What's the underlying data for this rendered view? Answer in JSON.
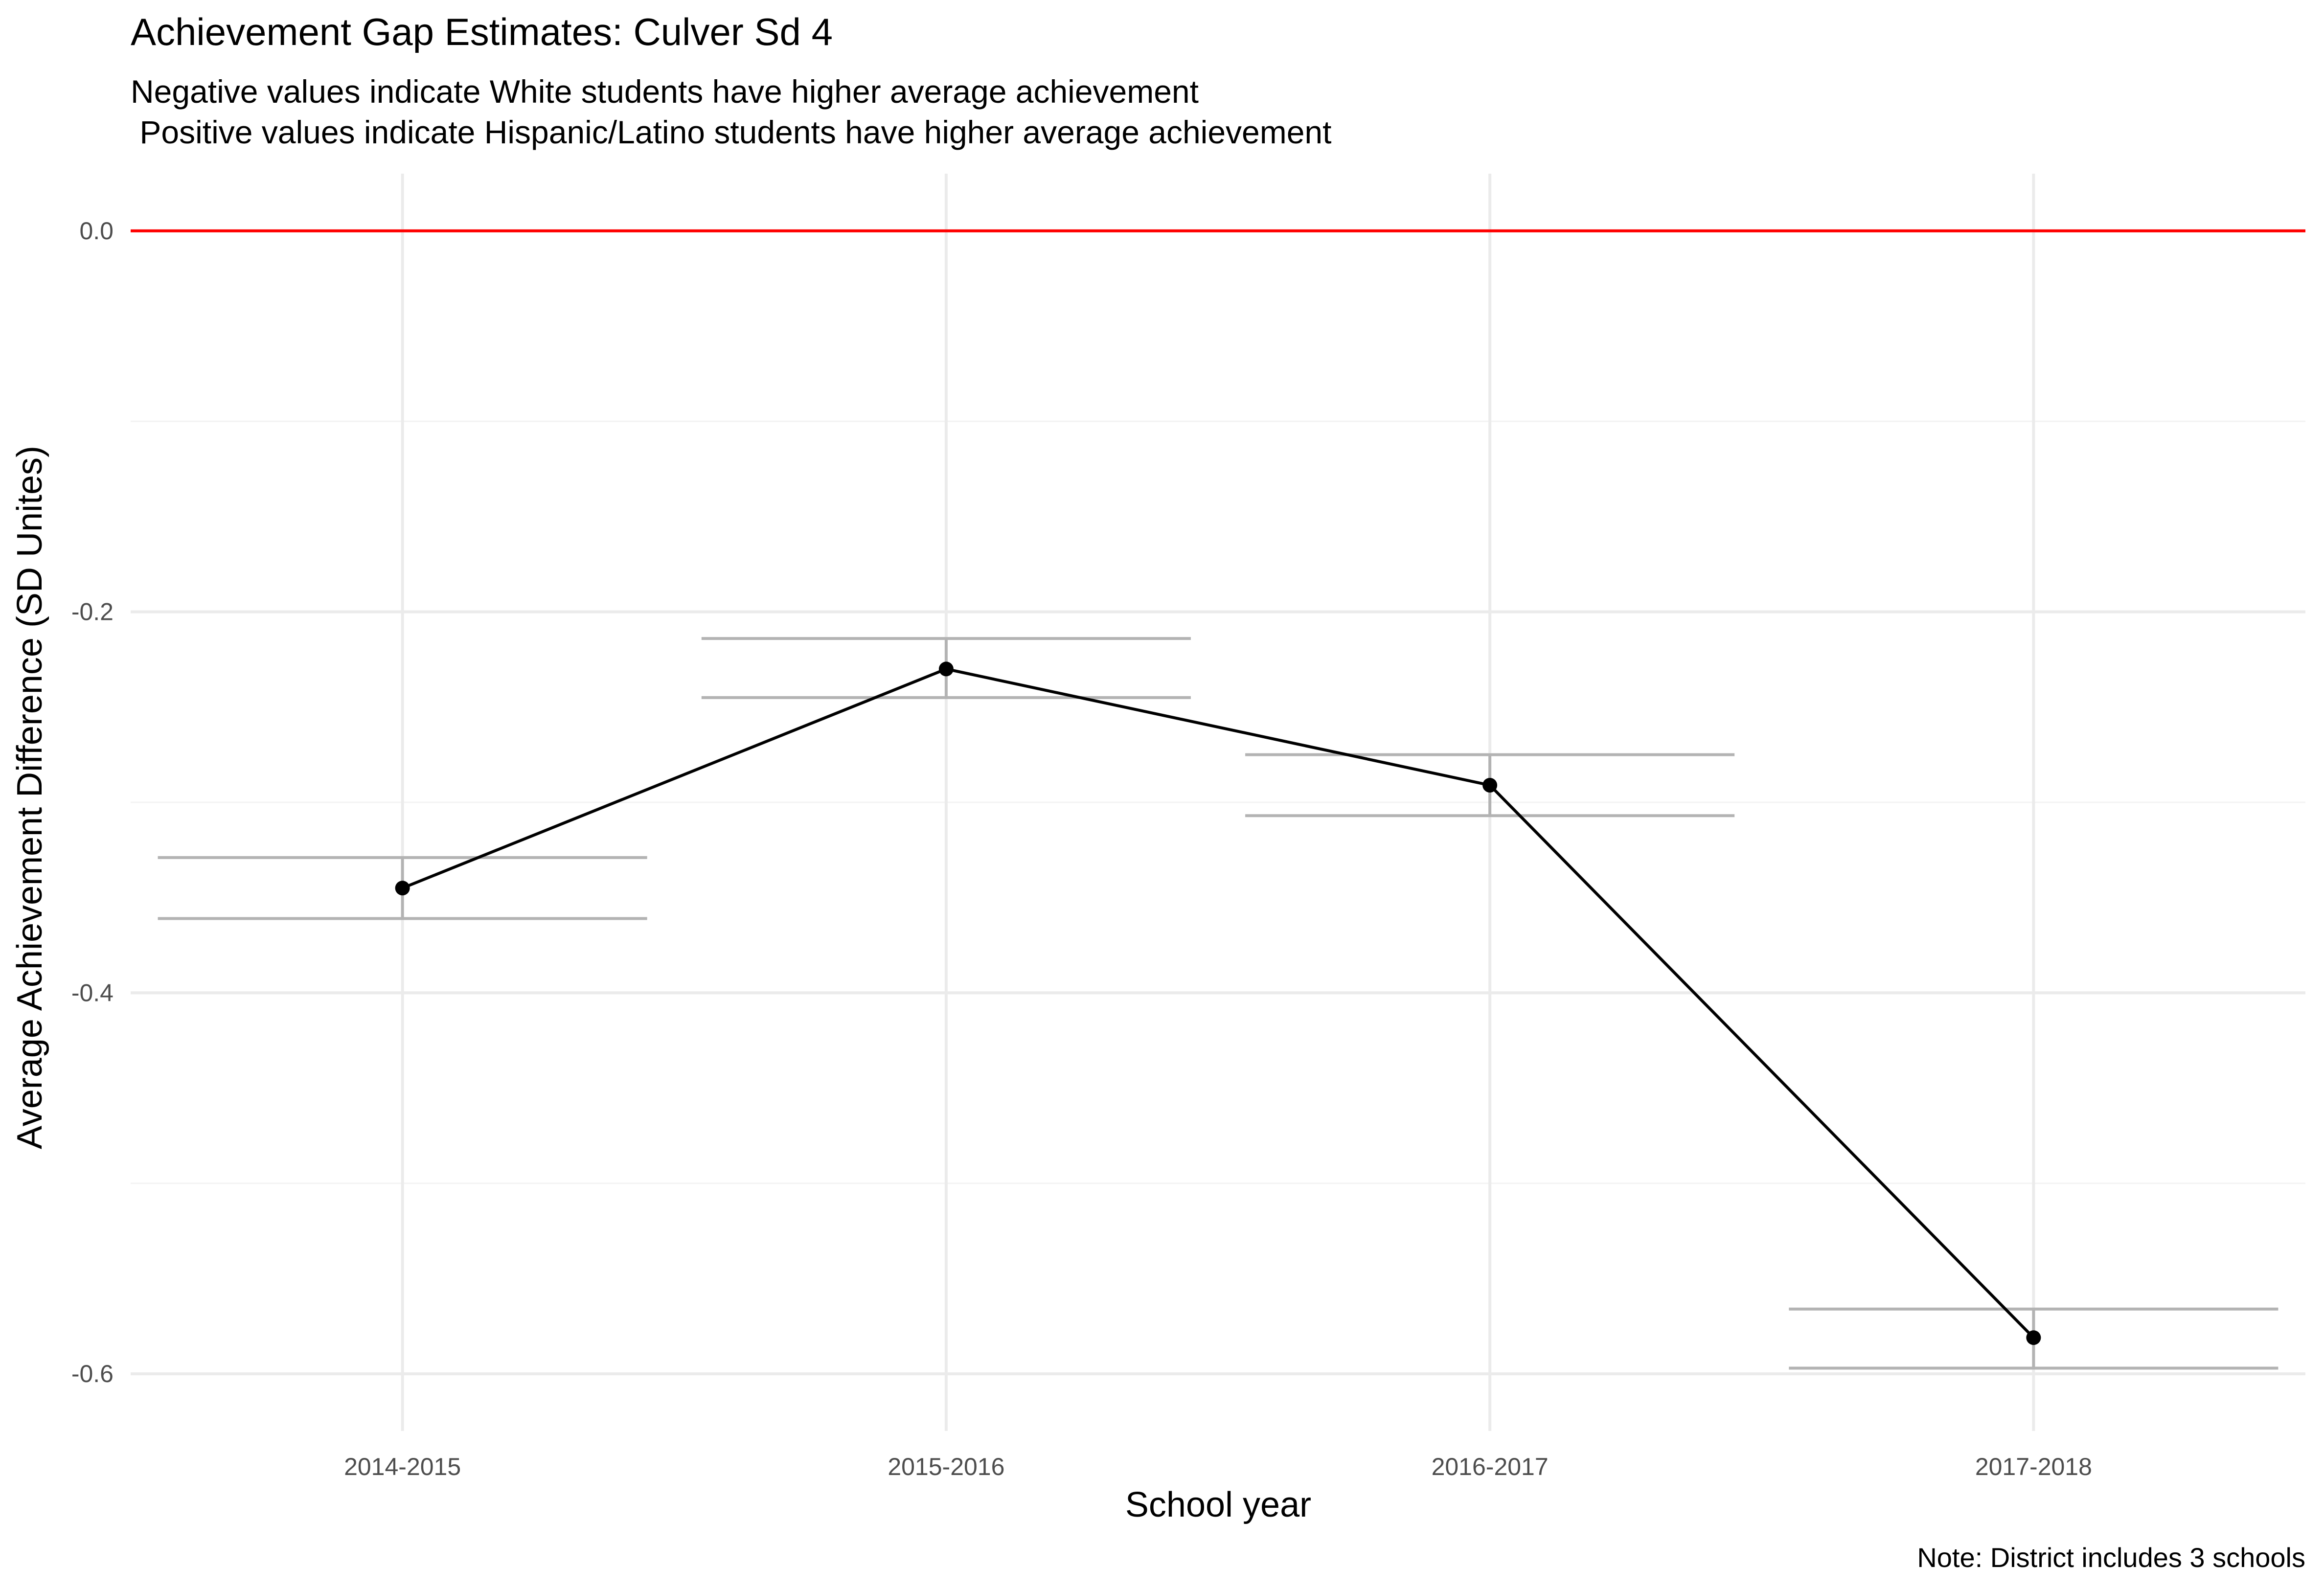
{
  "chart_data": {
    "type": "line",
    "title": "Achievement Gap Estimates: Culver Sd 4",
    "subtitle": [
      "Negative values indicate White students have higher average achievement",
      " Positive values indicate Hispanic/Latino students have higher average achievement"
    ],
    "xlabel": "School year",
    "ylabel": "Average Achievement Difference (SD Unites)",
    "caption": "Note: District includes 3 schools",
    "categories": [
      "2014-2015",
      "2015-2016",
      "2016-2017",
      "2017-2018"
    ],
    "series": [
      {
        "values": [
          -0.345,
          -0.23,
          -0.291,
          -0.581
        ],
        "lower": [
          -0.361,
          -0.245,
          -0.307,
          -0.597
        ],
        "upper": [
          -0.329,
          -0.214,
          -0.275,
          -0.566
        ]
      }
    ],
    "reference_line": {
      "y": 0.0,
      "color": "#ff0000"
    },
    "ylim": [
      -0.63,
      0.03
    ],
    "yticks": [
      0.0,
      -0.2,
      -0.4,
      -0.6
    ],
    "ytick_labels": [
      "0.0",
      "-0.2",
      "-0.4",
      "-0.6"
    ],
    "grid": true,
    "colors": {
      "line": "#000000",
      "errorbar": "#b3b3b3",
      "grid": "#ebebeb"
    }
  }
}
